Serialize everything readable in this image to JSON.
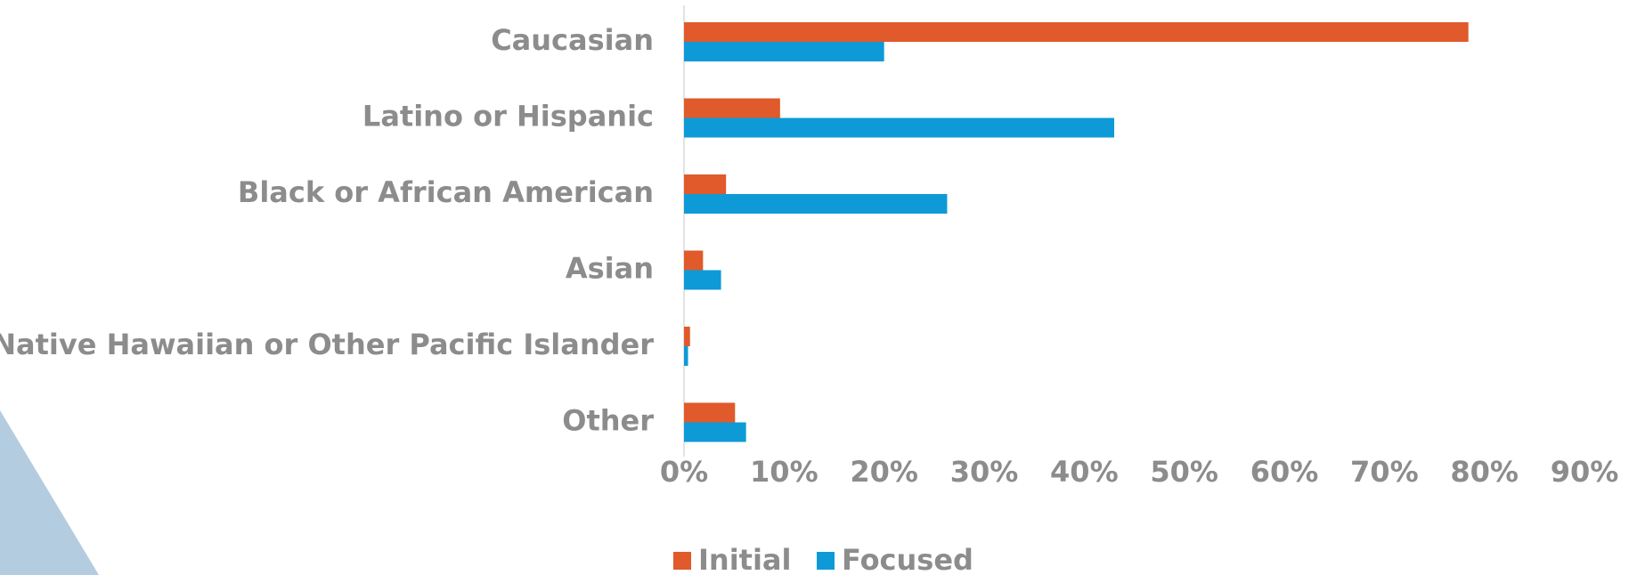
{
  "chart_data": {
    "type": "hbar",
    "categories": [
      "Caucasian",
      "Latino or Hispanic",
      "Black or African American",
      "Asian",
      "Native Hawaiian or Other Pacific Islander",
      "Other"
    ],
    "series": [
      {
        "name": "Initial",
        "color": "#e05a2b",
        "values": [
          78.4,
          9.6,
          4.2,
          1.9,
          0.6,
          5.1
        ]
      },
      {
        "name": "Focused",
        "color": "#0e9ad7",
        "values": [
          20.0,
          43.0,
          26.3,
          3.7,
          0.4,
          6.2
        ]
      }
    ],
    "xlim": [
      0,
      90
    ],
    "xticks": [
      {
        "value": 0,
        "label": "0%"
      },
      {
        "value": 10,
        "label": "10%"
      },
      {
        "value": 20,
        "label": "20%"
      },
      {
        "value": 30,
        "label": "30%"
      },
      {
        "value": 40,
        "label": "40%"
      },
      {
        "value": 50,
        "label": "50%"
      },
      {
        "value": 60,
        "label": "60%"
      },
      {
        "value": 70,
        "label": "70%"
      },
      {
        "value": 80,
        "label": "80%"
      },
      {
        "value": 90,
        "label": "90%"
      }
    ],
    "grid": false,
    "legend": "bottom"
  }
}
